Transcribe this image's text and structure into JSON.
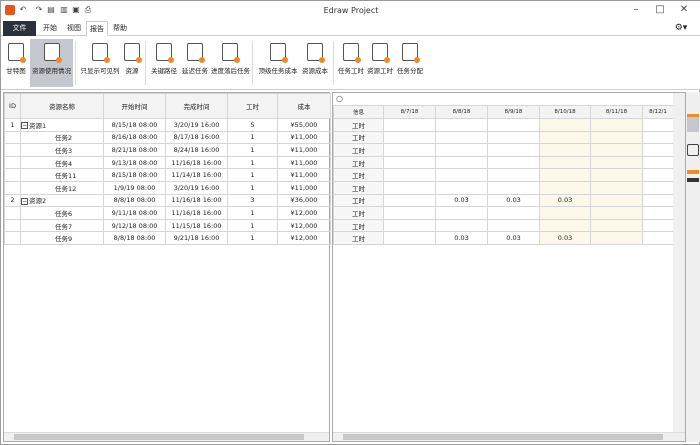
{
  "app": {
    "title": "Edraw Project"
  },
  "tabs": [
    {
      "label": "文件"
    },
    {
      "label": "开始"
    },
    {
      "label": "视图"
    },
    {
      "label": "报告"
    },
    {
      "label": "帮助"
    }
  ],
  "ribbon": [
    {
      "label": "甘特图"
    },
    {
      "label": "资源使用情况",
      "selected": true
    },
    {
      "label": "只显示可见列"
    },
    {
      "label": "资源"
    },
    {
      "label": "关键路径"
    },
    {
      "label": "延迟任务"
    },
    {
      "label": "进度落后任务"
    },
    {
      "label": "顶级任务成本"
    },
    {
      "label": "资源成本"
    },
    {
      "label": "任务工时"
    },
    {
      "label": "资源工时"
    },
    {
      "label": "任务分配"
    }
  ],
  "left_table": {
    "columns": [
      "ID",
      "资源名称",
      "开始时间",
      "完成时间",
      "工时",
      "成本"
    ],
    "rows": [
      [
        "1",
        "资源1",
        "8/15/18 08:00",
        "3/20/19 16:00",
        "5",
        "¥55,000"
      ],
      [
        "",
        "任务2",
        "8/16/18 08:00",
        "8/17/18 16:00",
        "1",
        "¥11,000"
      ],
      [
        "",
        "任务3",
        "8/21/18 08:00",
        "8/24/18 16:00",
        "1",
        "¥11,000"
      ],
      [
        "",
        "任务4",
        "9/13/18 08:00",
        "11/16/18 16:00",
        "1",
        "¥11,000"
      ],
      [
        "",
        "任务11",
        "8/15/18 08:00",
        "11/14/18 16:00",
        "1",
        "¥11,000"
      ],
      [
        "",
        "任务12",
        "1/9/19 08:00",
        "3/20/19 16:00",
        "1",
        "¥11,000"
      ],
      [
        "2",
        "资源2",
        "8/8/18 08:00",
        "11/16/18 16:00",
        "3",
        "¥36,000"
      ],
      [
        "",
        "任务6",
        "9/11/18 08:00",
        "11/16/18 16:00",
        "1",
        "¥12,000"
      ],
      [
        "",
        "任务7",
        "9/12/18 08:00",
        "11/15/18 16:00",
        "1",
        "¥12,000"
      ],
      [
        "",
        "任务9",
        "8/8/18 08:00",
        "9/21/18 16:00",
        "1",
        "¥12,000"
      ]
    ]
  },
  "right_grid": {
    "columns": [
      "信息",
      "8/7/18",
      "8/8/18",
      "8/9/18",
      "8/10/18",
      "8/11/18",
      "8/12/1"
    ],
    "rows": [
      [
        "工时",
        "",
        "",
        "",
        "",
        "",
        ""
      ],
      [
        "工时",
        "",
        "",
        "",
        "",
        "",
        ""
      ],
      [
        "工时",
        "",
        "",
        "",
        "",
        "",
        ""
      ],
      [
        "工时",
        "",
        "",
        "",
        "",
        "",
        ""
      ],
      [
        "工时",
        "",
        "",
        "",
        "",
        "",
        ""
      ],
      [
        "工时",
        "",
        "",
        "",
        "",
        "",
        ""
      ],
      [
        "工时",
        "",
        "0.03",
        "0.03",
        "0.03",
        "",
        ""
      ],
      [
        "工时",
        "",
        "",
        "",
        "",
        "",
        ""
      ],
      [
        "工时",
        "",
        "",
        "",
        "",
        "",
        ""
      ],
      [
        "工时",
        "",
        "0.03",
        "0.03",
        "0.03",
        "",
        ""
      ]
    ]
  },
  "colors": {
    "accent": "#f08a24",
    "file_tab": "#2b313b",
    "weekend": "#fdf9ea"
  }
}
